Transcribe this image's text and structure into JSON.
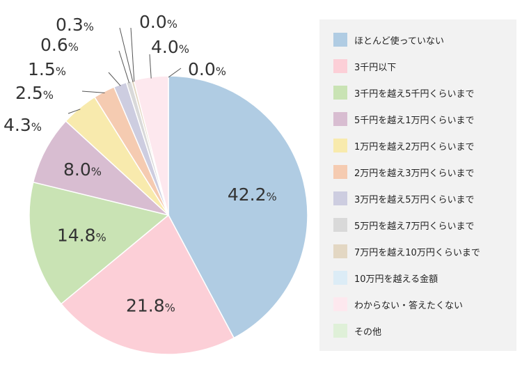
{
  "chart_data": {
    "type": "pie",
    "categories": [
      "ほとんど使っていない",
      "3千円以下",
      "3千円を越え5千円くらいまで",
      "5千円を越え1万円くらいまで",
      "1万円を越え2万円くらいまで",
      "2万円を越え3万円くらいまで",
      "3万円を越え5万円くらいまで",
      "5万円を越え7万円くらいまで",
      "7万円を越え10万円くらいまで",
      "10万円を越える金額",
      "わからない・答えたくない",
      "その他"
    ],
    "values": [
      42.2,
      21.8,
      14.8,
      8.0,
      4.3,
      2.5,
      1.5,
      0.6,
      0.3,
      0.0,
      4.0,
      0.0
    ],
    "value_labels": [
      "42.2",
      "21.8",
      "14.8",
      "8.0",
      "4.3",
      "2.5",
      "1.5",
      "0.6",
      "0.3",
      "0.0",
      "4.0",
      "0.0"
    ],
    "unit": "%",
    "colors": [
      "#b0cce3",
      "#fccfd7",
      "#c9e3b4",
      "#d8bdd1",
      "#f8eaad",
      "#f5cbb1",
      "#cdcde0",
      "#d9d9d9",
      "#e3d7c3",
      "#dcecf6",
      "#fde8ee",
      "#dff0d8"
    ],
    "start": "12 o'clock",
    "direction": "clockwise",
    "legend_position": "right"
  }
}
